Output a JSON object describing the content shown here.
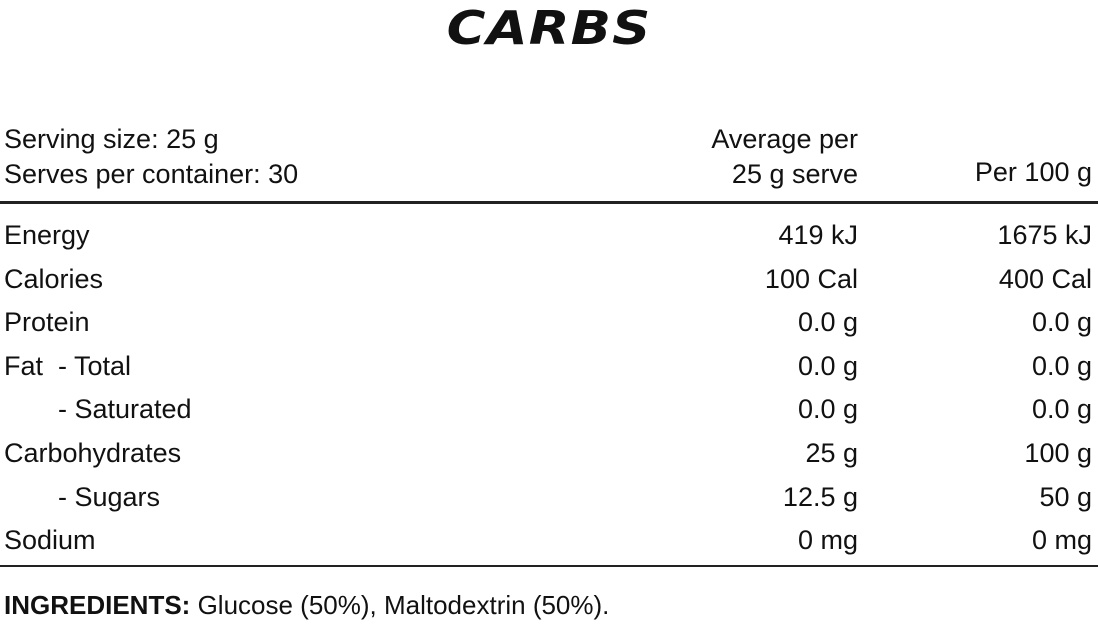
{
  "title": "CARBS",
  "header": {
    "serving_size": "Serving size: 25 g",
    "serves_per_container": "Serves per container: 30",
    "col_avg_line1": "Average per",
    "col_avg_line2": "25 g serve",
    "col_per100": "Per 100 g"
  },
  "rows": [
    {
      "name": "Energy",
      "per_serve": "419 kJ",
      "per_100": "1675 kJ"
    },
    {
      "name": "Calories",
      "per_serve": "100 Cal",
      "per_100": "400 Cal"
    },
    {
      "name": "Protein",
      "per_serve": "0.0 g",
      "per_100": "0.0 g"
    },
    {
      "name": "Fat  - Total",
      "per_serve": "0.0 g",
      "per_100": "0.0 g"
    },
    {
      "name": "- Saturated",
      "per_serve": "0.0 g",
      "per_100": "0.0 g"
    },
    {
      "name": "Carbohydrates",
      "per_serve": "25 g",
      "per_100": "100 g"
    },
    {
      "name": "- Sugars",
      "per_serve": "12.5 g",
      "per_100": "50 g"
    },
    {
      "name": "Sodium",
      "per_serve": "0 mg",
      "per_100": "0 mg"
    }
  ],
  "ingredients": {
    "label": "INGREDIENTS:",
    "text": " Glucose (50%), Maltodextrin (50%)."
  }
}
